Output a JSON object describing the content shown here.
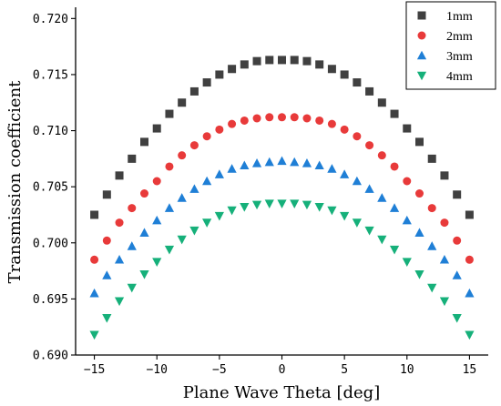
{
  "chart_data": {
    "type": "scatter",
    "xlabel": "Plane Wave Theta [deg]",
    "ylabel": "Transmission coefficient",
    "xlim": [
      -16.5,
      16.5
    ],
    "ylim": [
      0.69,
      0.721
    ],
    "xticks": [
      -15,
      -10,
      -5,
      0,
      5,
      10,
      15
    ],
    "yticks": [
      0.69,
      0.695,
      0.7,
      0.705,
      0.71,
      0.715,
      0.72
    ],
    "xtick_labels": [
      "−15",
      "−10",
      "−5",
      "0",
      "5",
      "10",
      "15"
    ],
    "ytick_labels": [
      "0.690",
      "0.695",
      "0.700",
      "0.705",
      "0.710",
      "0.715",
      "0.720"
    ],
    "legend_position": "top-right",
    "grid": false,
    "x": [
      -15,
      -14,
      -13,
      -12,
      -11,
      -10,
      -9,
      -8,
      -7,
      -6,
      -5,
      -4,
      -3,
      -2,
      -1,
      0,
      1,
      2,
      3,
      4,
      5,
      6,
      7,
      8,
      9,
      10,
      11,
      12,
      13,
      14,
      15
    ],
    "series": [
      {
        "name": "1mm",
        "marker": "square",
        "color": "#404040",
        "values": [
          0.7025,
          0.7043,
          0.706,
          0.7075,
          0.709,
          0.7102,
          0.7115,
          0.7125,
          0.7135,
          0.7143,
          0.715,
          0.7155,
          0.7159,
          0.7162,
          0.7163,
          0.7163,
          0.7163,
          0.7162,
          0.7159,
          0.7155,
          0.715,
          0.7143,
          0.7135,
          0.7125,
          0.7115,
          0.7102,
          0.709,
          0.7075,
          0.706,
          0.7043,
          0.7025
        ]
      },
      {
        "name": "2mm",
        "marker": "circle",
        "color": "#e83a3a",
        "values": [
          0.6985,
          0.7002,
          0.7018,
          0.7031,
          0.7044,
          0.7055,
          0.7068,
          0.7078,
          0.7087,
          0.7095,
          0.7101,
          0.7106,
          0.7109,
          0.7111,
          0.7112,
          0.7112,
          0.7112,
          0.7111,
          0.7109,
          0.7106,
          0.7101,
          0.7095,
          0.7087,
          0.7078,
          0.7068,
          0.7055,
          0.7044,
          0.7031,
          0.7018,
          0.7002,
          0.6985
        ]
      },
      {
        "name": "3mm",
        "marker": "triangle-up",
        "color": "#1f7fd6",
        "values": [
          0.6955,
          0.6971,
          0.6985,
          0.6997,
          0.7009,
          0.702,
          0.7031,
          0.704,
          0.7048,
          0.7055,
          0.7061,
          0.7066,
          0.7069,
          0.7071,
          0.7072,
          0.7073,
          0.7072,
          0.7071,
          0.7069,
          0.7066,
          0.7061,
          0.7055,
          0.7048,
          0.704,
          0.7031,
          0.702,
          0.7009,
          0.6997,
          0.6985,
          0.6971,
          0.6955
        ]
      },
      {
        "name": "4mm",
        "marker": "triangle-down",
        "color": "#16b07a",
        "values": [
          0.6918,
          0.6933,
          0.6948,
          0.696,
          0.6972,
          0.6983,
          0.6994,
          0.7003,
          0.7011,
          0.7018,
          0.7024,
          0.7029,
          0.7032,
          0.7034,
          0.7035,
          0.7035,
          0.7035,
          0.7034,
          0.7032,
          0.7029,
          0.7024,
          0.7018,
          0.7011,
          0.7003,
          0.6994,
          0.6983,
          0.6972,
          0.696,
          0.6948,
          0.6933,
          0.6918
        ]
      }
    ]
  }
}
